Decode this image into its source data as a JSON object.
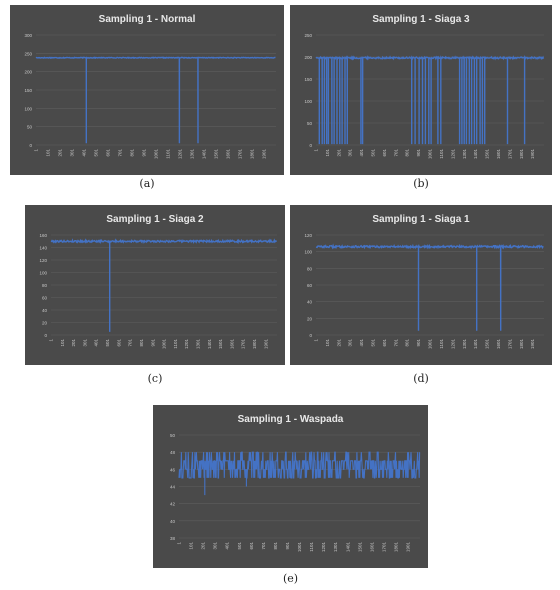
{
  "figure": {
    "panels": [
      {
        "caption": "(a)"
      },
      {
        "caption": "(b)"
      },
      {
        "caption": "(c)"
      },
      {
        "caption": "(d)"
      },
      {
        "caption": "(e)"
      }
    ]
  },
  "colors": {
    "background": "#4a4a4a",
    "gridline": "#5e5e5e",
    "line": "#4472c4",
    "title": "#e8e8e8",
    "ticks": "#c8c8c8"
  },
  "chart_data": [
    {
      "type": "line",
      "title": "Sampling 1 - Normal",
      "ylim": [
        0,
        300
      ],
      "yticks": [
        "0",
        "50",
        "100",
        "150",
        "200",
        "250",
        "300"
      ],
      "xlim": [
        1,
        2000
      ],
      "xticks": [
        "1",
        "101",
        "201",
        "301",
        "401",
        "501",
        "601",
        "701",
        "801",
        "901",
        "1001",
        "1101",
        "1201",
        "1301",
        "1401",
        "1501",
        "1601",
        "1701",
        "1801",
        "1901"
      ],
      "baseline": 238,
      "noise": 1,
      "dips": [
        {
          "x": 420,
          "y": 5
        },
        {
          "x": 1195,
          "y": 5
        },
        {
          "x": 1350,
          "y": 5
        }
      ],
      "grid": true,
      "legend": "none"
    },
    {
      "type": "line",
      "title": "Sampling 1 - Siaga 3",
      "ylim": [
        0,
        250
      ],
      "yticks": [
        "0",
        "50",
        "100",
        "150",
        "200",
        "250"
      ],
      "xlim": [
        1,
        2000
      ],
      "xticks": [
        "1",
        "101",
        "201",
        "301",
        "401",
        "501",
        "601",
        "701",
        "801",
        "901",
        "1001",
        "1101",
        "1201",
        "1301",
        "1401",
        "1501",
        "1601",
        "1701",
        "1801",
        "1901"
      ],
      "baseline": 198,
      "noise": 2,
      "dips": [
        {
          "x": 30,
          "y": 2
        },
        {
          "x": 55,
          "y": 2
        },
        {
          "x": 75,
          "y": 2
        },
        {
          "x": 95,
          "y": 2
        },
        {
          "x": 110,
          "y": 2
        },
        {
          "x": 140,
          "y": 2
        },
        {
          "x": 160,
          "y": 2
        },
        {
          "x": 185,
          "y": 2
        },
        {
          "x": 210,
          "y": 2
        },
        {
          "x": 230,
          "y": 2
        },
        {
          "x": 255,
          "y": 2
        },
        {
          "x": 275,
          "y": 2
        },
        {
          "x": 395,
          "y": 2
        },
        {
          "x": 410,
          "y": 2
        },
        {
          "x": 840,
          "y": 2
        },
        {
          "x": 870,
          "y": 2
        },
        {
          "x": 905,
          "y": 2
        },
        {
          "x": 935,
          "y": 2
        },
        {
          "x": 960,
          "y": 2
        },
        {
          "x": 990,
          "y": 2
        },
        {
          "x": 1010,
          "y": 2
        },
        {
          "x": 1070,
          "y": 2
        },
        {
          "x": 1095,
          "y": 2
        },
        {
          "x": 1260,
          "y": 2
        },
        {
          "x": 1280,
          "y": 2
        },
        {
          "x": 1300,
          "y": 2
        },
        {
          "x": 1320,
          "y": 2
        },
        {
          "x": 1345,
          "y": 2
        },
        {
          "x": 1365,
          "y": 2
        },
        {
          "x": 1390,
          "y": 2
        },
        {
          "x": 1410,
          "y": 2
        },
        {
          "x": 1440,
          "y": 2
        },
        {
          "x": 1460,
          "y": 2
        },
        {
          "x": 1480,
          "y": 2
        },
        {
          "x": 1680,
          "y": 2
        },
        {
          "x": 1830,
          "y": 2
        }
      ],
      "grid": true,
      "legend": "none"
    },
    {
      "type": "line",
      "title": "Sampling 1 - Siaga 2",
      "ylim": [
        0,
        160
      ],
      "yticks": [
        "0",
        "20",
        "40",
        "60",
        "80",
        "100",
        "120",
        "140",
        "160"
      ],
      "xlim": [
        1,
        2000
      ],
      "xticks": [
        "1",
        "101",
        "201",
        "301",
        "401",
        "501",
        "601",
        "701",
        "801",
        "901",
        "1001",
        "1101",
        "1201",
        "1301",
        "1401",
        "1501",
        "1601",
        "1701",
        "1801",
        "1901"
      ],
      "baseline": 150,
      "noise": 1.5,
      "dips": [
        {
          "x": 520,
          "y": 5
        }
      ],
      "grid": true,
      "legend": "none"
    },
    {
      "type": "line",
      "title": "Sampling 1 - Siaga 1",
      "ylim": [
        0,
        120
      ],
      "yticks": [
        "0",
        "20",
        "40",
        "60",
        "80",
        "100",
        "120"
      ],
      "xlim": [
        1,
        2000
      ],
      "xticks": [
        "1",
        "101",
        "201",
        "301",
        "401",
        "501",
        "601",
        "701",
        "801",
        "901",
        "1001",
        "1101",
        "1201",
        "1301",
        "1401",
        "1501",
        "1601",
        "1701",
        "1801",
        "1901"
      ],
      "baseline": 106,
      "noise": 1.2,
      "dips": [
        {
          "x": 900,
          "y": 5
        },
        {
          "x": 1410,
          "y": 5
        },
        {
          "x": 1620,
          "y": 5
        }
      ],
      "grid": true,
      "legend": "none"
    },
    {
      "type": "line",
      "title": "Sampling 1 - Waspada",
      "ylim": [
        38,
        50
      ],
      "yticks": [
        "38",
        "40",
        "42",
        "44",
        "46",
        "48",
        "50"
      ],
      "xlim": [
        1,
        2000
      ],
      "xticks": [
        "1",
        "101",
        "201",
        "301",
        "401",
        "501",
        "601",
        "701",
        "801",
        "901",
        "1001",
        "1101",
        "1201",
        "1301",
        "1401",
        "1501",
        "1601",
        "1701",
        "1801",
        "1901"
      ],
      "baseline": 46,
      "band": [
        45,
        48
      ],
      "dips": [
        {
          "x": 215,
          "y": 43
        },
        {
          "x": 560,
          "y": 44
        }
      ],
      "grid": true,
      "legend": "none"
    }
  ]
}
